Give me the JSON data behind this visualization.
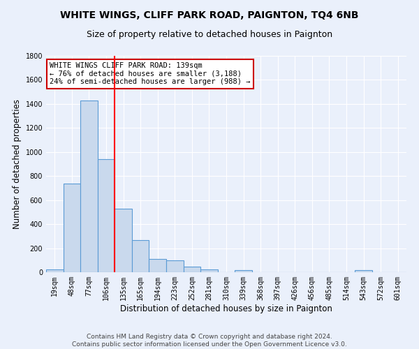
{
  "title": "WHITE WINGS, CLIFF PARK ROAD, PAIGNTON, TQ4 6NB",
  "subtitle": "Size of property relative to detached houses in Paignton",
  "xlabel": "Distribution of detached houses by size in Paignton",
  "ylabel": "Number of detached properties",
  "footer": "Contains HM Land Registry data © Crown copyright and database right 2024.\nContains public sector information licensed under the Open Government Licence v3.0.",
  "bins": [
    "19sqm",
    "48sqm",
    "77sqm",
    "106sqm",
    "135sqm",
    "165sqm",
    "194sqm",
    "223sqm",
    "252sqm",
    "281sqm",
    "310sqm",
    "339sqm",
    "368sqm",
    "397sqm",
    "426sqm",
    "456sqm",
    "485sqm",
    "514sqm",
    "543sqm",
    "572sqm",
    "601sqm"
  ],
  "values": [
    25,
    740,
    1430,
    940,
    530,
    270,
    110,
    100,
    45,
    25,
    0,
    15,
    0,
    0,
    0,
    0,
    0,
    0,
    15,
    0,
    0
  ],
  "bar_color": "#c9d9ed",
  "bar_edge_color": "#5b9bd5",
  "red_line_index": 4,
  "annotation_text": "WHITE WINGS CLIFF PARK ROAD: 139sqm\n← 76% of detached houses are smaller (3,188)\n24% of semi-detached houses are larger (988) →",
  "annotation_box_color": "#ffffff",
  "annotation_box_edge": "#cc0000",
  "ylim": [
    0,
    1800
  ],
  "yticks": [
    0,
    200,
    400,
    600,
    800,
    1000,
    1200,
    1400,
    1600,
    1800
  ],
  "bg_color": "#eaf0fb",
  "plot_bg_color": "#eaf0fb",
  "grid_color": "#ffffff",
  "title_fontsize": 10,
  "subtitle_fontsize": 9,
  "axis_label_fontsize": 8.5,
  "tick_fontsize": 7
}
